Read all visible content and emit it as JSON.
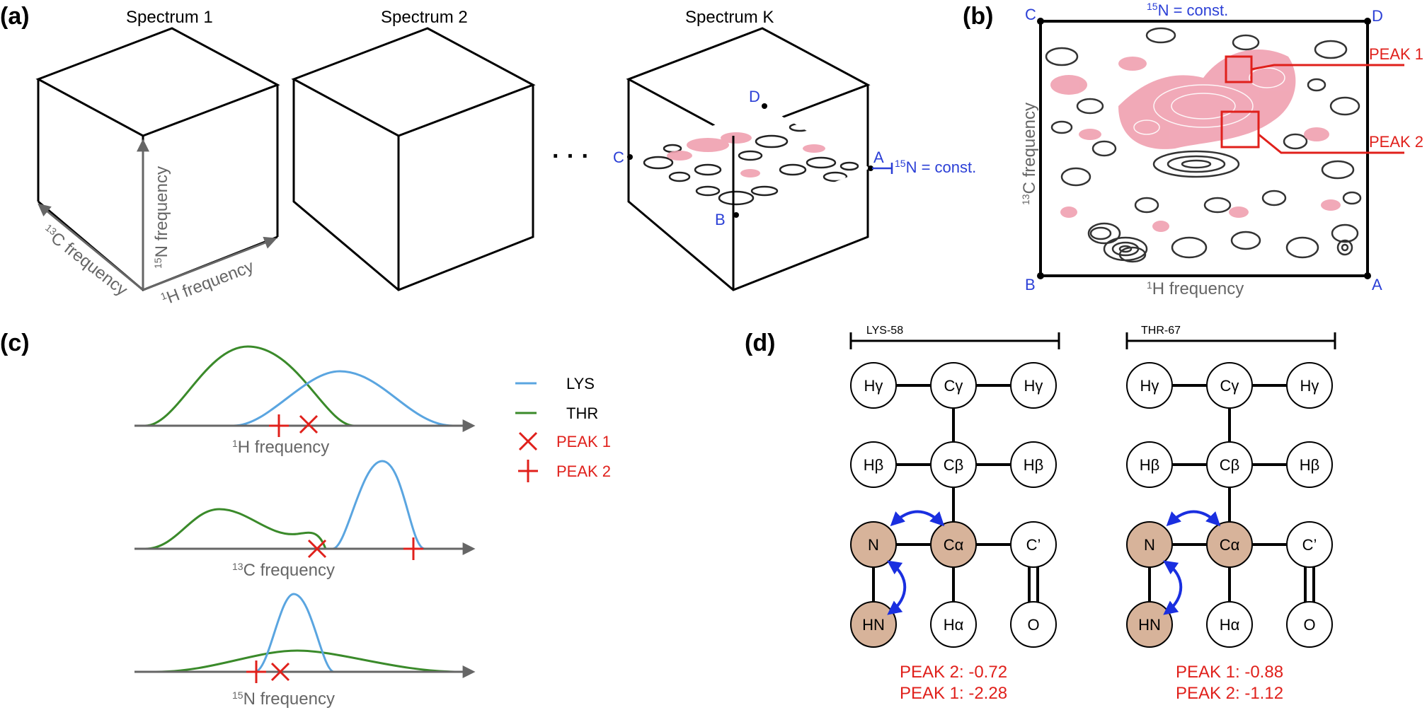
{
  "panel_labels": {
    "a": "(a)",
    "b": "(b)",
    "c": "(c)",
    "d": "(d)"
  },
  "panel_a": {
    "spectrum_titles": [
      "Spectrum 1",
      "Spectrum 2",
      "Spectrum K"
    ],
    "ellipsis": "· · ·",
    "axis_labels": {
      "n": "N frequency",
      "c": "C frequency",
      "h": "H frequency",
      "n_sup": "15",
      "c_sup": "13",
      "h_sup": "1"
    },
    "corner_labels": {
      "a": "A",
      "b": "B",
      "c": "C",
      "d": "D"
    },
    "slice_label": "N = const.",
    "slice_sup": "15"
  },
  "panel_b": {
    "top_label": "N = const.",
    "top_sup": "15",
    "corners": {
      "a": "A",
      "b": "B",
      "c": "C",
      "d": "D"
    },
    "x_label": "H frequency",
    "x_sup": "1",
    "y_label": "C frequency",
    "y_sup": "13",
    "peak_labels": [
      "PEAK 1",
      "PEAK 2"
    ]
  },
  "panel_c": {
    "axis_labels": [
      "H frequency",
      "C frequency",
      "N frequency"
    ],
    "axis_sups": [
      "1",
      "13",
      "15"
    ],
    "legend": [
      {
        "label": "LYS",
        "color": "#5aa5e0",
        "kind": "line"
      },
      {
        "label": "THR",
        "color": "#3a8a2a",
        "kind": "line"
      },
      {
        "label": "PEAK 1",
        "color": "#e0201b",
        "kind": "x"
      },
      {
        "label": "PEAK 2",
        "color": "#e0201b",
        "kind": "plus"
      }
    ]
  },
  "panel_d": {
    "residues": [
      {
        "name": "LYS-58",
        "atoms": [
          "Hγ",
          "Cγ",
          "Hγ",
          "Hβ",
          "Cβ",
          "Hβ",
          "N",
          "Cα",
          "C’",
          "HN",
          "Hα",
          "O"
        ],
        "peaks": [
          "PEAK 2: -0.72",
          "PEAK 1: -2.28"
        ]
      },
      {
        "name": "THR-67",
        "atoms": [
          "Hγ",
          "Cγ",
          "Hγ",
          "Hβ",
          "Cβ",
          "Hβ",
          "N",
          "Cα",
          "C’",
          "HN",
          "Hα",
          "O"
        ],
        "peaks": [
          "PEAK 1: -0.88",
          "PEAK 2: -1.12"
        ]
      }
    ]
  },
  "colors": {
    "blue_label": "#2b3fd6",
    "red": "#e0201b",
    "axis_gray": "#666666",
    "lys": "#5aa5e0",
    "thr": "#3a8a2a",
    "tan_atom": "#d7b39a",
    "pink_contour": "#f0a0b0",
    "dark_contour": "#333333",
    "arrow_blue": "#1a2fe0"
  }
}
